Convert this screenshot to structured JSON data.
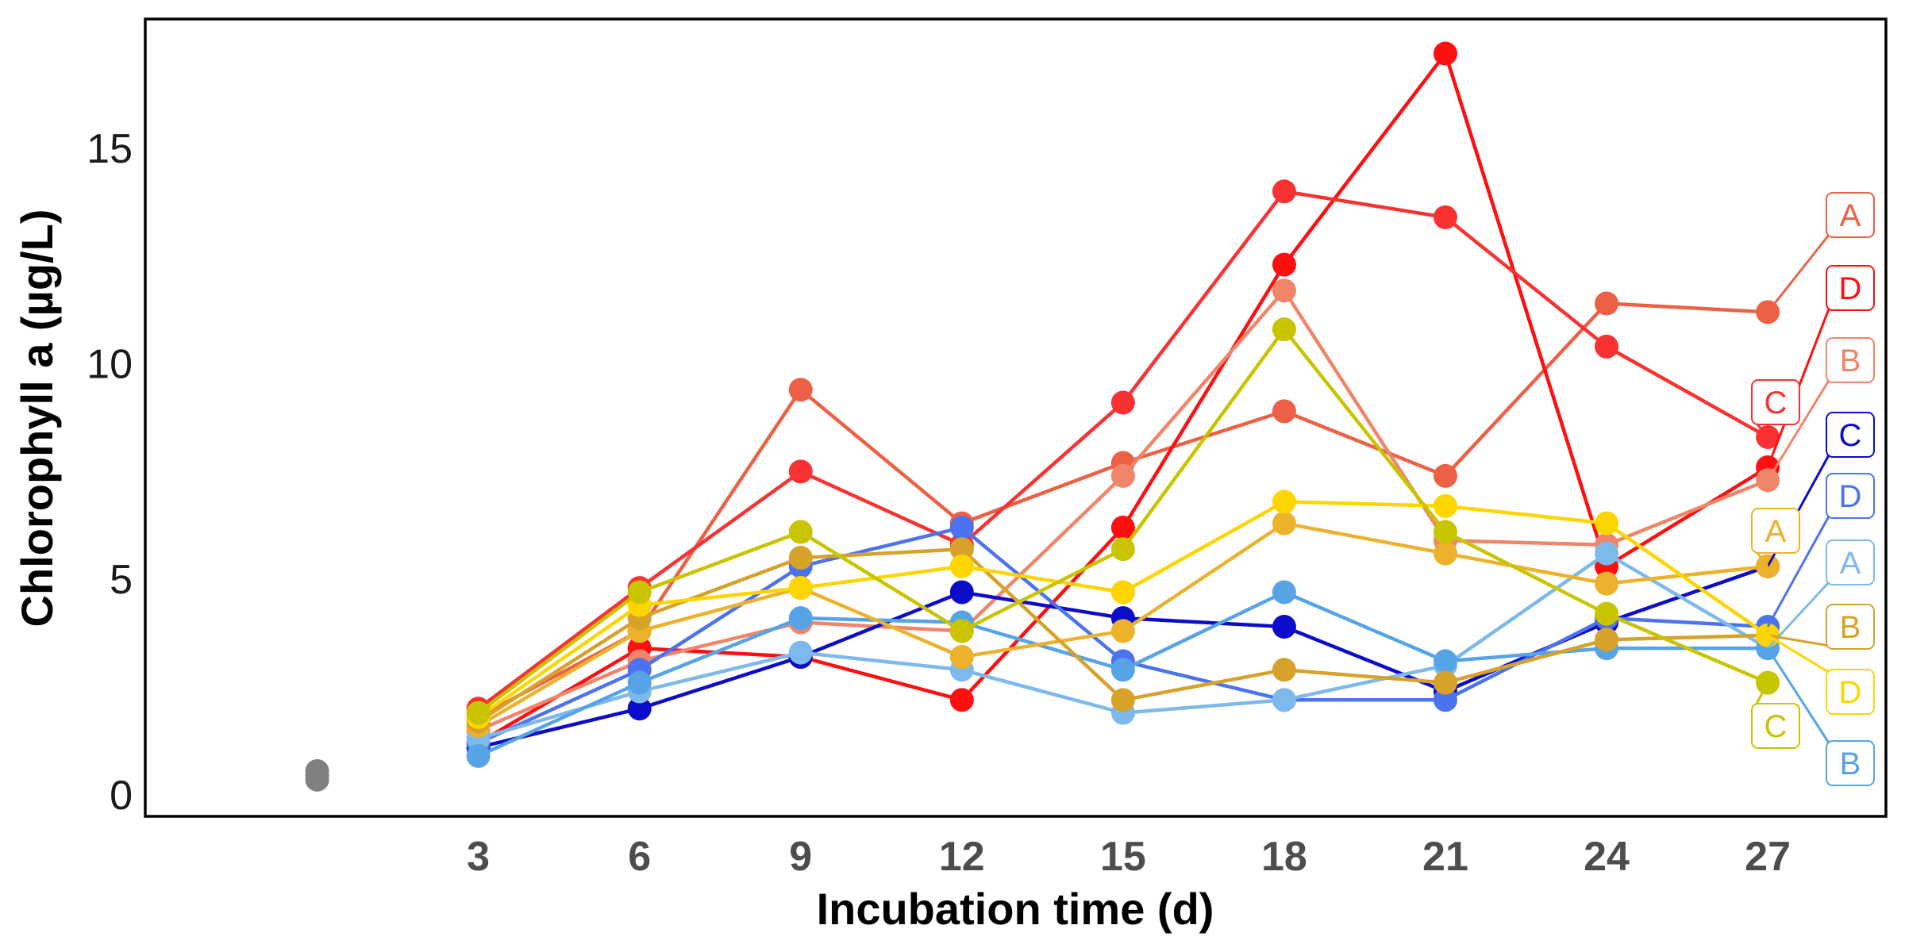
{
  "chart_data": {
    "type": "line",
    "title": "",
    "xlabel": "Incubation time (d)",
    "ylabel": "Chlorophyll a (µg/L)",
    "xlim": [
      -3.2,
      29.2
    ],
    "ylim": [
      -0.5,
      18.0
    ],
    "x_ticks": [
      3,
      6,
      9,
      12,
      15,
      18,
      21,
      24,
      27
    ],
    "y_ticks": [
      0,
      5,
      10,
      15
    ],
    "grid": false,
    "legend": "none",
    "initial_points": {
      "color": "#808080",
      "x": [
        0,
        0,
        0
      ],
      "y": [
        0.55,
        0.35,
        0.45
      ]
    },
    "series": [
      {
        "label": "A",
        "color": "#EE6046",
        "x": [
          3,
          6,
          9,
          12,
          15,
          18,
          21,
          24,
          27
        ],
        "y": [
          1.8,
          3.8,
          9.4,
          6.3,
          7.7,
          8.9,
          7.4,
          11.4,
          11.2
        ]
      },
      {
        "label": "D",
        "color": "#FF0F0F",
        "x": [
          3,
          6,
          9,
          12,
          15,
          18,
          21,
          24,
          27
        ],
        "y": [
          1.2,
          3.4,
          3.2,
          2.2,
          6.2,
          12.3,
          17.2,
          5.3,
          7.6
        ]
      },
      {
        "label": "B",
        "color": "#F0856A",
        "x": [
          3,
          6,
          9,
          12,
          15,
          18,
          21,
          24,
          27
        ],
        "y": [
          1.5,
          3.1,
          4.0,
          3.8,
          7.4,
          11.7,
          5.9,
          5.8,
          7.3
        ]
      },
      {
        "label": "C",
        "color": "#F83232",
        "x": [
          3,
          6,
          9,
          12,
          15,
          18,
          21,
          24,
          27
        ],
        "y": [
          2.0,
          4.8,
          7.5,
          5.8,
          9.1,
          14.0,
          13.4,
          10.4,
          8.3
        ]
      },
      {
        "label": "C",
        "color": "#0C0CCB",
        "x": [
          3,
          6,
          9,
          12,
          15,
          18,
          21,
          24,
          27
        ],
        "y": [
          1.1,
          2.0,
          3.2,
          4.7,
          4.1,
          3.9,
          2.4,
          4.0,
          5.3
        ]
      },
      {
        "label": "D",
        "color": "#4C72F0",
        "x": [
          3,
          6,
          9,
          12,
          15,
          18,
          21,
          24,
          27
        ],
        "y": [
          1.2,
          2.9,
          5.3,
          6.2,
          3.1,
          2.2,
          2.2,
          4.1,
          3.9
        ]
      },
      {
        "label": "A",
        "color": "#7EB9EC",
        "x": [
          3,
          6,
          9,
          12,
          15,
          18,
          21,
          24,
          27
        ],
        "y": [
          1.3,
          2.4,
          3.3,
          2.9,
          1.9,
          2.2,
          3.0,
          5.6,
          3.4
        ]
      },
      {
        "label": "B",
        "color": "#56A4E6",
        "x": [
          3,
          6,
          9,
          12,
          15,
          18,
          21,
          24,
          27
        ],
        "y": [
          0.9,
          2.6,
          4.1,
          4.0,
          2.9,
          4.7,
          3.1,
          3.4,
          3.4
        ]
      },
      {
        "label": "A",
        "color": "#EDB22C",
        "x": [
          3,
          6,
          9,
          12,
          15,
          18,
          21,
          24,
          27
        ],
        "y": [
          1.6,
          3.8,
          4.8,
          3.2,
          3.8,
          6.3,
          5.6,
          4.9,
          5.3
        ]
      },
      {
        "label": "B",
        "color": "#D6A22A",
        "x": [
          3,
          6,
          9,
          12,
          15,
          18,
          21,
          24,
          27
        ],
        "y": [
          1.7,
          4.1,
          5.5,
          5.7,
          2.2,
          2.9,
          2.6,
          3.6,
          3.7
        ]
      },
      {
        "label": "D",
        "color": "#FFD500",
        "x": [
          3,
          6,
          9,
          12,
          15,
          18,
          21,
          24,
          27
        ],
        "y": [
          1.8,
          4.4,
          4.8,
          5.3,
          4.7,
          6.8,
          6.7,
          6.3,
          3.7
        ]
      },
      {
        "label": "C",
        "color": "#C9C400",
        "x": [
          3,
          6,
          9,
          12,
          15,
          18,
          21,
          24,
          27
        ],
        "y": [
          1.9,
          4.7,
          6.1,
          3.8,
          5.7,
          10.8,
          6.1,
          4.2,
          2.6
        ]
      }
    ]
  }
}
